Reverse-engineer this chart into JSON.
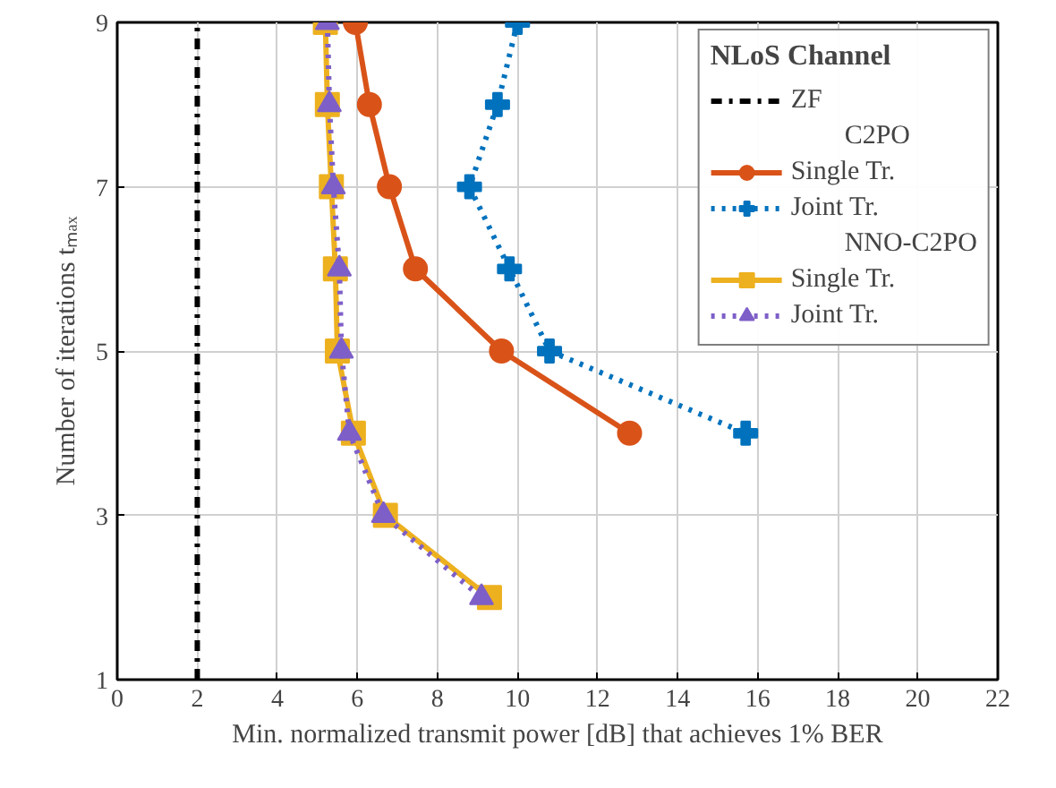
{
  "chart_data": {
    "type": "line",
    "xlabel": "Min. normalized transmit power [dB] that achieves 1% BER",
    "ylabel": "Number of iterations tₘₐₓ",
    "legend_title": "NLoS Channel",
    "annotations": [
      "C2PO",
      "NNO-C2PO"
    ],
    "xlim": [
      0,
      22
    ],
    "xticks": [
      0,
      2,
      4,
      6,
      8,
      10,
      12,
      14,
      16,
      18,
      20,
      22
    ],
    "ylim": [
      1,
      9
    ],
    "yticks": [
      1,
      3,
      5,
      7,
      9
    ],
    "grid": true,
    "legend": "top right",
    "series": [
      {
        "name": "ZF",
        "color": "#000000",
        "x": [
          2,
          2
        ],
        "values": [
          1,
          9
        ],
        "marker": "none",
        "line_style": "dashdot"
      },
      {
        "name": "Single Tr.",
        "color": "#d95319",
        "x": [
          5.95,
          6.3,
          6.8,
          7.45,
          9.6,
          12.8
        ],
        "values": [
          9,
          8,
          7,
          6,
          5,
          4
        ],
        "marker": "circle",
        "line_style": "solid"
      },
      {
        "name": "Joint Tr.",
        "color": "#0072bd",
        "x": [
          10.0,
          9.5,
          8.8,
          9.8,
          10.8,
          15.7
        ],
        "values": [
          9,
          8,
          7,
          6,
          5,
          4
        ],
        "marker": "cross",
        "line_style": "dotted"
      },
      {
        "name": "Single Tr.",
        "color": "#edb120",
        "x": [
          5.2,
          5.25,
          5.35,
          5.45,
          5.5,
          5.9,
          6.7,
          9.3
        ],
        "values": [
          9,
          8,
          7,
          6,
          5,
          4,
          3,
          2
        ],
        "marker": "square",
        "line_style": "solid"
      },
      {
        "name": "Joint Tr.",
        "color": "#7e5fc8",
        "x": [
          5.25,
          5.3,
          5.4,
          5.55,
          5.6,
          5.8,
          6.65,
          9.1
        ],
        "values": [
          9,
          8,
          7,
          6,
          5,
          4,
          3,
          2
        ],
        "marker": "triangle",
        "line_style": "dotted"
      }
    ]
  }
}
